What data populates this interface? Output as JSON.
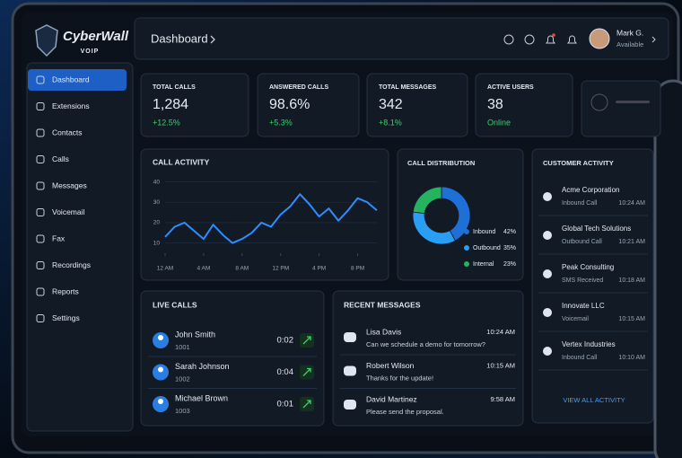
{
  "brand": {
    "name": "CyberWall",
    "sub": "VOIP"
  },
  "header": {
    "title": "Dashboard",
    "user": "Mark G.",
    "status": "Available"
  },
  "nav": [
    "Dashboard",
    "Extensions",
    "Contacts",
    "Calls",
    "Messages",
    "Voicemail",
    "Fax",
    "Recordings",
    "Reports",
    "Settings"
  ],
  "stats": [
    {
      "label": "TOTAL CALLS",
      "value": "1,284",
      "change": "+12.5%"
    },
    {
      "label": "ANSWERED CALLS",
      "value": "98.6%",
      "change": "+5.3%"
    },
    {
      "label": "TOTAL MESSAGES",
      "value": "342",
      "change": "+8.1%"
    },
    {
      "label": "ACTIVE USERS",
      "value": "38",
      "change": "Online"
    }
  ],
  "call_activity": {
    "type": "line",
    "title": "CALL ACTIVITY",
    "x": [
      0,
      1,
      2,
      3,
      4,
      5,
      6,
      7,
      8,
      9,
      10,
      11,
      12,
      13,
      14,
      15,
      16,
      17,
      18,
      19,
      20,
      21,
      22
    ],
    "values": [
      13,
      18,
      20,
      16,
      12,
      19,
      14,
      10,
      12,
      15,
      20,
      18,
      24,
      28,
      34,
      29,
      23,
      27,
      21,
      26,
      32,
      30,
      26
    ],
    "color": "#2f8cff",
    "xlim": [
      0,
      22
    ],
    "xticks": [
      {
        "value": 0,
        "label": "12 AM"
      },
      {
        "value": 4,
        "label": "4 AM"
      },
      {
        "value": 8,
        "label": "8 AM"
      },
      {
        "value": 12,
        "label": "12 PM"
      },
      {
        "value": 16,
        "label": "4 PM"
      },
      {
        "value": 20,
        "label": "8 PM"
      }
    ],
    "ylim": [
      5,
      42
    ],
    "yticks": [
      10,
      20,
      30,
      40
    ],
    "grid": true
  },
  "call_distribution": {
    "type": "pie",
    "title": "CALL DISTRIBUTION",
    "categories": [
      "Inbound",
      "Outbound",
      "Internal"
    ],
    "values": [
      42,
      35,
      23
    ],
    "value_labels": [
      "42%",
      "35%",
      "23%"
    ],
    "colors": [
      "#1e6fd6",
      "#2a9df4",
      "#25b35f"
    ]
  },
  "customer_activity": {
    "title": "CUSTOMER ACTIVITY",
    "items": [
      {
        "name": "Acme Corporation",
        "detail": "Inbound Call",
        "time": "10:24 AM"
      },
      {
        "name": "Global Tech Solutions",
        "detail": "Outbound Call",
        "time": "10:21 AM"
      },
      {
        "name": "Peak Consulting",
        "detail": "SMS Received",
        "time": "10:18 AM"
      },
      {
        "name": "Innovate LLC",
        "detail": "Voicemail",
        "time": "10:15 AM"
      },
      {
        "name": "Vertex Industries",
        "detail": "Inbound Call",
        "time": "10:10 AM"
      }
    ],
    "link": "VIEW ALL ACTIVITY"
  },
  "live_calls": {
    "title": "LIVE CALLS",
    "items": [
      {
        "name": "John Smith",
        "ext": "1001",
        "duration": "0:02"
      },
      {
        "name": "Sarah Johnson",
        "ext": "1002",
        "duration": "0:04"
      },
      {
        "name": "Michael Brown",
        "ext": "1003",
        "duration": "0:01"
      }
    ]
  },
  "recent_messages": {
    "title": "RECENT MESSAGES",
    "items": [
      {
        "name": "Lisa Davis",
        "text": "Can we schedule a demo for tomorrow?",
        "time": "10:24 AM"
      },
      {
        "name": "Robert Wilson",
        "text": "Thanks for the update!",
        "time": "10:15 AM"
      },
      {
        "name": "David Martinez",
        "text": "Please send the proposal.",
        "time": "9:58 AM"
      }
    ]
  }
}
